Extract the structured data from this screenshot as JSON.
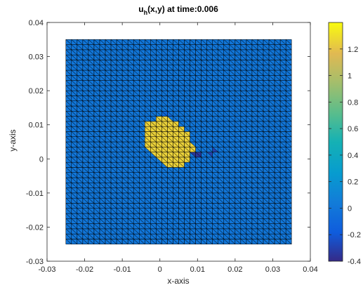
{
  "chart_data": {
    "type": "heatmap",
    "title": {
      "main": "u",
      "sub": "h",
      "rest": "(x,y) at time:0.006"
    },
    "xlabel": "x-axis",
    "ylabel": "y-axis",
    "xlim": [
      -0.03,
      0.04
    ],
    "ylim": [
      -0.03,
      0.04
    ],
    "xticks": [
      -0.03,
      -0.02,
      -0.01,
      0,
      0.01,
      0.02,
      0.03,
      0.04
    ],
    "xtick_labels": [
      "-0.03",
      "-0.02",
      "-0.01",
      "0",
      "0.01",
      "0.02",
      "0.03",
      "0.04"
    ],
    "yticks": [
      -0.03,
      -0.02,
      -0.01,
      0,
      0.01,
      0.02,
      0.03,
      0.04
    ],
    "ytick_labels": [
      "-0.03",
      "-0.02",
      "-0.01",
      "0",
      "0.01",
      "0.02",
      "0.03",
      "0.04"
    ],
    "domain": {
      "x": [
        -0.025,
        0.035
      ],
      "y": [
        -0.025,
        0.035
      ]
    },
    "mesh": {
      "nx": 40,
      "ny": 40,
      "element": "triangle",
      "edge_color": "#000000"
    },
    "background_value": 0,
    "blob": {
      "value": 1.25,
      "polygon": [
        [
          -0.004,
          0.01
        ],
        [
          0.0,
          0.0125
        ],
        [
          0.004,
          0.0115
        ],
        [
          0.0075,
          0.0075
        ],
        [
          0.0095,
          0.0025
        ],
        [
          0.0065,
          -0.002
        ],
        [
          0.0035,
          -0.0025
        ],
        [
          0.0,
          -0.001
        ],
        [
          -0.0045,
          0.0035
        ]
      ],
      "undershoot_spots": [
        {
          "x": 0.0095,
          "y": 0.0015,
          "value": -0.35
        },
        {
          "x": 0.014,
          "y": 0.002,
          "value": -0.3
        },
        {
          "x": 0.002,
          "y": 0.013,
          "value": -0.1
        }
      ]
    },
    "colorbar": {
      "clim": [
        -0.4,
        1.4
      ],
      "ticks": [
        -0.4,
        -0.2,
        0,
        0.2,
        0.4,
        0.6,
        0.8,
        1,
        1.2
      ],
      "tick_labels": [
        "-0.4",
        "-0.2",
        "0",
        "0.2",
        "0.4",
        "0.6",
        "0.8",
        "1",
        "1.2"
      ],
      "colormap": "parula"
    },
    "grid": false,
    "legend": "none"
  }
}
